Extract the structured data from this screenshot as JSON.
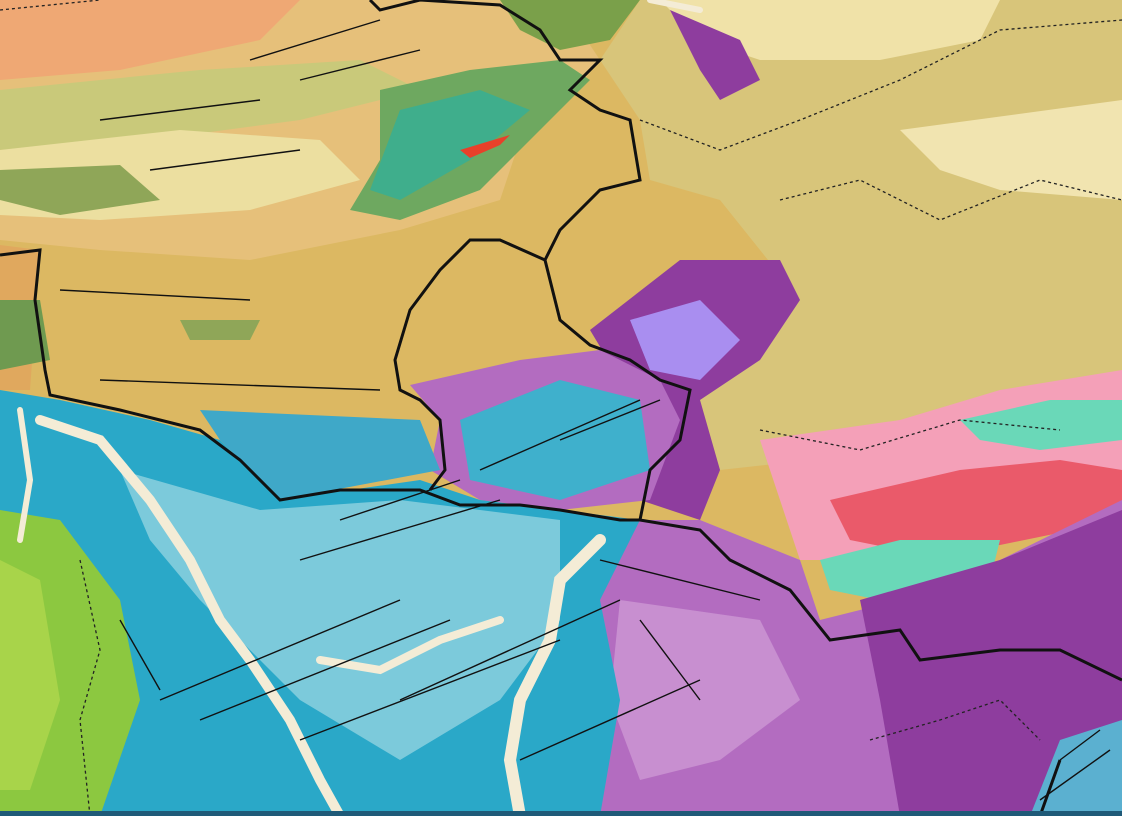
{
  "map": {
    "kind": "geological map",
    "colors": {
      "loess_tan": "#dcb862",
      "khaki": "#d8c57a",
      "orange_tan": "#e0a85e",
      "peach": "#efa874",
      "pale_yellow": "#ecdfa0",
      "olive_green": "#8fa658",
      "teal_green": "#3fae8c",
      "purple_dark": "#8e3d9e",
      "purple_mid": "#b36cc0",
      "lilac": "#c88fd0",
      "lavender": "#a98ef0",
      "cyan_dark": "#2aa8c8",
      "cyan_light": "#7ccadb",
      "cream_river": "#f4ecd6",
      "lime_green": "#8cc840",
      "red_pink": "#ea5a6a",
      "pink": "#f4a0b8",
      "mint": "#6ad8b8",
      "border": "#111111",
      "bottom_bar": "#1f5a78"
    }
  }
}
